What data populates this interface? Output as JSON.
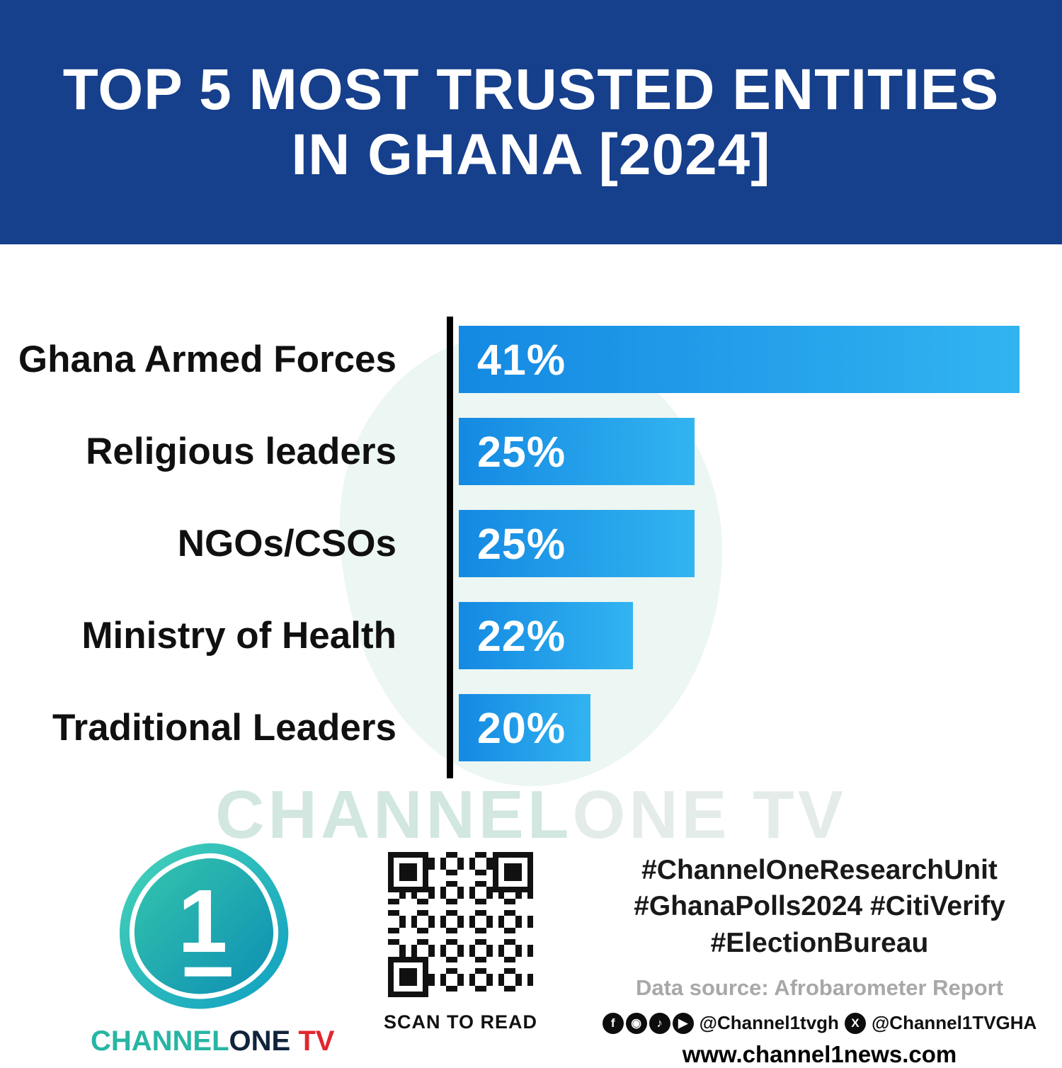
{
  "header": {
    "title_line1": "TOP 5 MOST TRUSTED ENTITIES",
    "title_line2": "IN GHANA [2024]",
    "bg_color": "#163f8c"
  },
  "chart_data": {
    "type": "bar",
    "orientation": "horizontal",
    "title": "TOP 5 MOST TRUSTED ENTITIES IN GHANA [2024]",
    "categories": [
      "Ghana Armed Forces",
      "Religious leaders",
      "NGOs/CSOs",
      "Ministry of Health",
      "Traditional Leaders"
    ],
    "values": [
      41,
      25,
      25,
      22,
      20
    ],
    "value_labels": [
      "41%",
      "25%",
      "25%",
      "22%",
      "20%"
    ],
    "xlim": [
      0,
      41
    ],
    "grid": false,
    "legend": "none",
    "axis_color": "#000000",
    "bar_gradient": [
      "#1489e2",
      "#32b4f1"
    ],
    "bar_display_width_pct": [
      100,
      42,
      42,
      31,
      23.5
    ],
    "source": "Afrobarometer Report"
  },
  "watermark": {
    "part1": "CHANNEL",
    "part2": "ONE TV"
  },
  "footer": {
    "logo": {
      "digit": "1",
      "brand_channel": "CHANNEL",
      "brand_one": "ONE",
      "brand_tv": " TV",
      "teal": "#28b5a3",
      "red": "#e2262d"
    },
    "qr_caption": "SCAN TO READ",
    "hashtags_line1": "#ChannelOneResearchUnit",
    "hashtags_line2": "#GhanaPolls2024 #CitiVerify",
    "hashtags_line3": "#ElectionBureau",
    "data_source": "Data source: Afrobarometer Report",
    "social": {
      "icons": [
        "facebook-icon",
        "instagram-icon",
        "tiktok-icon",
        "youtube-icon"
      ],
      "glyphs": [
        "f",
        "◉",
        "♪",
        "▶"
      ],
      "handle1": "@Channel1tvgh",
      "x_glyph": "X",
      "handle2": "@Channel1TVGHA"
    },
    "website": "www.channel1news.com"
  }
}
